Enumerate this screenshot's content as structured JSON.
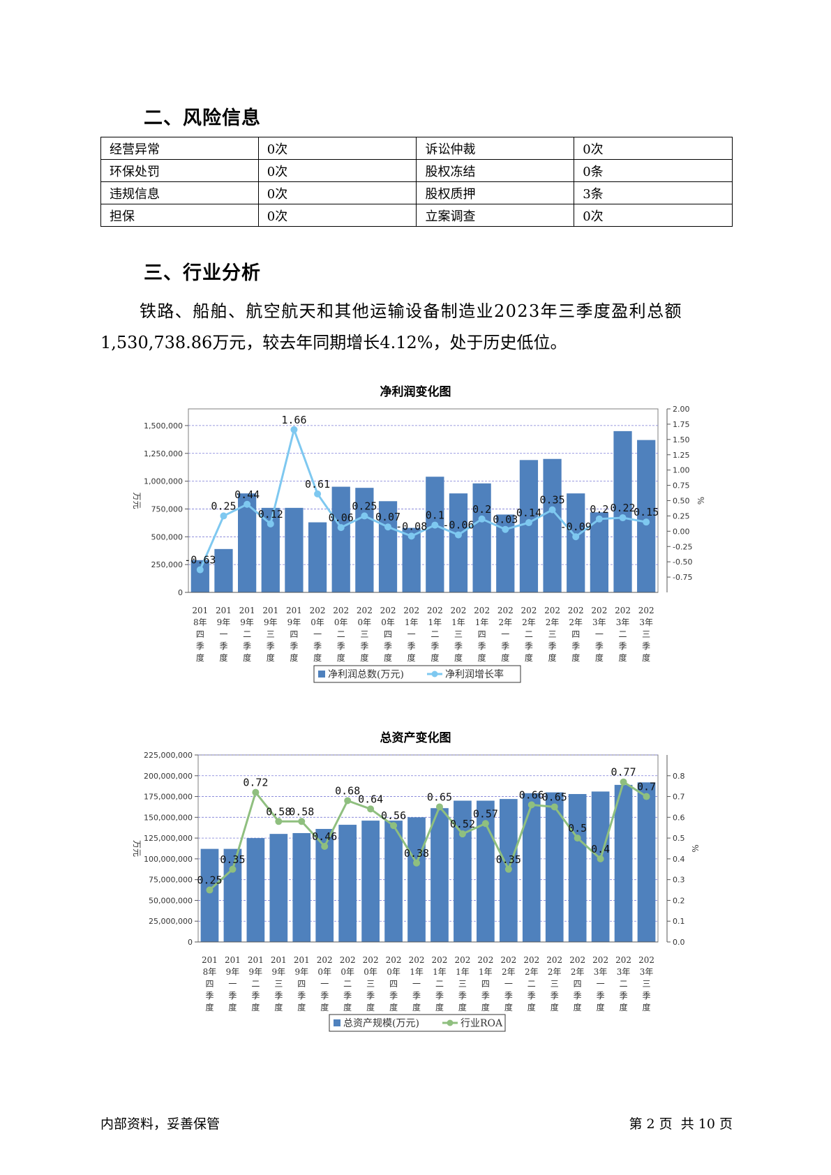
{
  "section2": {
    "title": "二、风险信息",
    "table": [
      [
        "经营异常",
        "0次",
        "诉讼仲裁",
        "0次"
      ],
      [
        "环保处罚",
        "0次",
        "股权冻结",
        "0条"
      ],
      [
        "违规信息",
        "0次",
        "股权质押",
        "3条"
      ],
      [
        "担保",
        "0次",
        "立案调查",
        "0次"
      ]
    ]
  },
  "section3": {
    "title": "三、行业分析",
    "paragraph_line1": "铁路、船舶、航空航天和其他运输设备制造业2023年三季度盈利总额",
    "paragraph_line2": "1,530,738.86万元，较去年同期增长4.12%，处于历史低位。"
  },
  "chart_data": [
    {
      "type": "bar",
      "title": "净利润变化图",
      "ylabel": "万元",
      "y2label": "%",
      "ylim": [
        0,
        1650000
      ],
      "y2lim": [
        -1.0,
        2.0
      ],
      "yticks": [
        "0",
        "250,000",
        "500,000",
        "750,000",
        "1,000,000",
        "1,250,000",
        "1,500,000"
      ],
      "y2ticks": [
        "-0.75",
        "-0.50",
        "-0.25",
        "0.00",
        "0.25",
        "0.50",
        "0.75",
        "1.00",
        "1.25",
        "1.50",
        "1.75",
        "2.00"
      ],
      "categories": [
        [
          "201",
          "8年",
          "四",
          "季",
          "度"
        ],
        [
          "201",
          "9年",
          "一",
          "季",
          "度"
        ],
        [
          "201",
          "9年",
          "二",
          "季",
          "度"
        ],
        [
          "201",
          "9年",
          "三",
          "季",
          "度"
        ],
        [
          "201",
          "9年",
          "四",
          "季",
          "度"
        ],
        [
          "202",
          "0年",
          "一",
          "季",
          "度"
        ],
        [
          "202",
          "0年",
          "二",
          "季",
          "度"
        ],
        [
          "202",
          "0年",
          "三",
          "季",
          "度"
        ],
        [
          "202",
          "0年",
          "四",
          "季",
          "度"
        ],
        [
          "202",
          "1年",
          "一",
          "季",
          "度"
        ],
        [
          "202",
          "1年",
          "二",
          "季",
          "度"
        ],
        [
          "202",
          "1年",
          "三",
          "季",
          "度"
        ],
        [
          "202",
          "1年",
          "四",
          "季",
          "度"
        ],
        [
          "202",
          "2年",
          "一",
          "季",
          "度"
        ],
        [
          "202",
          "2年",
          "二",
          "季",
          "度"
        ],
        [
          "202",
          "2年",
          "三",
          "季",
          "度"
        ],
        [
          "202",
          "2年",
          "四",
          "季",
          "度"
        ],
        [
          "202",
          "3年",
          "一",
          "季",
          "度"
        ],
        [
          "202",
          "3年",
          "二",
          "季",
          "度"
        ],
        [
          "202",
          "3年",
          "三",
          "季",
          "度"
        ]
      ],
      "series": [
        {
          "name": "净利润总数(万元)",
          "type": "bar",
          "color": "#4f81bd",
          "values": [
            290000,
            390000,
            890000,
            760000,
            760000,
            630000,
            950000,
            940000,
            820000,
            580000,
            1040000,
            890000,
            980000,
            700000,
            1190000,
            1200000,
            890000,
            720000,
            1450000,
            1370000
          ]
        },
        {
          "name": "净利润增长率",
          "type": "line",
          "axis": "right",
          "color": "#7ec8f0",
          "values": [
            -0.63,
            0.25,
            0.44,
            0.12,
            1.66,
            0.61,
            0.06,
            0.25,
            0.07,
            -0.08,
            0.1,
            -0.06,
            0.2,
            0.03,
            0.14,
            0.35,
            -0.09,
            0.2,
            0.22,
            0.15
          ],
          "labels": [
            "-0.63",
            "0.25",
            "0.44",
            "0.12",
            "1.66",
            "0.61",
            "0.06",
            "0.25",
            "0.07",
            "-0.08",
            "0.1",
            "-0.06",
            "0.2",
            "0.03",
            "0.14",
            "0.35",
            "-0.09",
            "0.2",
            "0.22",
            "0.15"
          ]
        }
      ],
      "legend": "bottom"
    },
    {
      "type": "bar",
      "title": "总资产变化图",
      "ylabel": "万元",
      "y2label": "%",
      "ylim": [
        0,
        225000000
      ],
      "y2lim": [
        0.0,
        0.9
      ],
      "yticks": [
        "0",
        "25,000,000",
        "50,000,000",
        "75,000,000",
        "100,000,000",
        "125,000,000",
        "150,000,000",
        "175,000,000",
        "200,000,000",
        "225,000,000"
      ],
      "y2ticks": [
        "0.0",
        "0.1",
        "0.2",
        "0.3",
        "0.4",
        "0.5",
        "0.6",
        "0.7",
        "0.8"
      ],
      "categories": [
        [
          "201",
          "8年",
          "四",
          "季",
          "度"
        ],
        [
          "201",
          "9年",
          "一",
          "季",
          "度"
        ],
        [
          "201",
          "9年",
          "二",
          "季",
          "度"
        ],
        [
          "201",
          "9年",
          "三",
          "季",
          "度"
        ],
        [
          "201",
          "9年",
          "四",
          "季",
          "度"
        ],
        [
          "202",
          "0年",
          "一",
          "季",
          "度"
        ],
        [
          "202",
          "0年",
          "二",
          "季",
          "度"
        ],
        [
          "202",
          "0年",
          "三",
          "季",
          "度"
        ],
        [
          "202",
          "0年",
          "四",
          "季",
          "度"
        ],
        [
          "202",
          "1年",
          "一",
          "季",
          "度"
        ],
        [
          "202",
          "1年",
          "二",
          "季",
          "度"
        ],
        [
          "202",
          "1年",
          "三",
          "季",
          "度"
        ],
        [
          "202",
          "1年",
          "四",
          "季",
          "度"
        ],
        [
          "202",
          "2年",
          "一",
          "季",
          "度"
        ],
        [
          "202",
          "2年",
          "二",
          "季",
          "度"
        ],
        [
          "202",
          "2年",
          "三",
          "季",
          "度"
        ],
        [
          "202",
          "2年",
          "四",
          "季",
          "度"
        ],
        [
          "202",
          "3年",
          "一",
          "季",
          "度"
        ],
        [
          "202",
          "3年",
          "二",
          "季",
          "度"
        ],
        [
          "202",
          "3年",
          "三",
          "季",
          "度"
        ]
      ],
      "series": [
        {
          "name": "总资产规模(万元)",
          "type": "bar",
          "color": "#4f81bd",
          "values": [
            112000000,
            112000000,
            125000000,
            130000000,
            131000000,
            136000000,
            141000000,
            146000000,
            146000000,
            150000000,
            161000000,
            170000000,
            170000000,
            172000000,
            179000000,
            180000000,
            178000000,
            181000000,
            189000000,
            192000000
          ]
        },
        {
          "name": "行业ROA",
          "type": "line",
          "axis": "right",
          "color": "#8fbf7f",
          "values": [
            0.25,
            0.35,
            0.72,
            0.58,
            0.58,
            0.46,
            0.68,
            0.64,
            0.56,
            0.38,
            0.65,
            0.52,
            0.57,
            0.35,
            0.66,
            0.65,
            0.5,
            0.4,
            0.77,
            0.7
          ],
          "labels": [
            "0.25",
            "0.35",
            "0.72",
            "0.58",
            "0.58",
            "0.46",
            "0.68",
            "0.64",
            "0.56",
            "0.38",
            "0.65",
            "0.52",
            "0.57",
            "0.35",
            "0.66",
            "0.65",
            "0.5",
            "0.4",
            "0.77",
            "0.7"
          ]
        }
      ],
      "legend": "bottom"
    }
  ],
  "footer": {
    "left": "内部资料，妥善保管",
    "right": "第 2 页  共 10 页"
  }
}
